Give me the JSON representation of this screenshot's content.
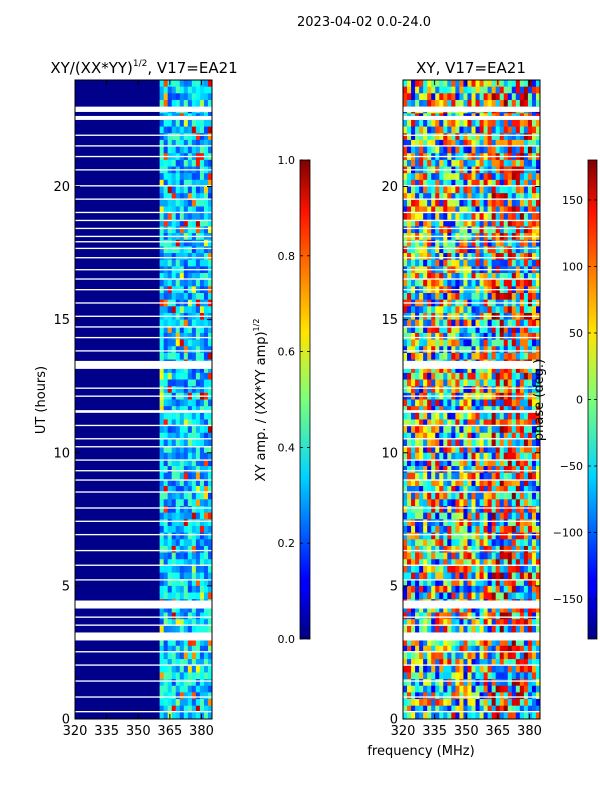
{
  "suptitle": "2023-04-02 0.0-24.0",
  "shared_xlabel": "frequency (MHz)",
  "chart_data": [
    {
      "type": "heatmap",
      "title_main": "XY/(XX*YY)",
      "title_exp": "1/2",
      "title_suffix": ", V17=EA21",
      "xlabel": "",
      "ylabel": "UT (hours)",
      "xlim": [
        320,
        385
      ],
      "ylim": [
        0,
        24
      ],
      "xticks": [
        320,
        335,
        350,
        365,
        380
      ],
      "yticks": [
        0,
        5,
        10,
        15,
        20
      ],
      "colorbar": {
        "label_main": "XY amp. / (XX*YY amp)",
        "label_exp": "1/2",
        "range": [
          0.0,
          1.0
        ],
        "ticks": [
          "0.0",
          "0.2",
          "0.4",
          "0.6",
          "0.8",
          "1.0"
        ],
        "tick_values": [
          0.0,
          0.2,
          0.4,
          0.6,
          0.8,
          1.0
        ]
      },
      "flagged_hours": [
        [
          0.25,
          0.3
        ],
        [
          0.8,
          0.85
        ],
        [
          1.4,
          1.45
        ],
        [
          2.0,
          2.05
        ],
        [
          2.5,
          2.55
        ],
        [
          2.95,
          3.25
        ],
        [
          3.5,
          3.55
        ],
        [
          3.8,
          3.85
        ],
        [
          4.15,
          4.45
        ],
        [
          5.2,
          5.25
        ],
        [
          5.75,
          5.8
        ],
        [
          6.3,
          6.35
        ],
        [
          6.9,
          6.95
        ],
        [
          7.4,
          7.45
        ],
        [
          7.9,
          7.95
        ],
        [
          8.5,
          8.55
        ],
        [
          8.95,
          9.0
        ],
        [
          9.3,
          9.35
        ],
        [
          9.7,
          9.75
        ],
        [
          10.2,
          10.25
        ],
        [
          10.5,
          10.55
        ],
        [
          11.0,
          11.05
        ],
        [
          11.5,
          11.6
        ],
        [
          12.1,
          12.15
        ],
        [
          12.4,
          12.45
        ],
        [
          13.15,
          13.45
        ],
        [
          13.8,
          13.85
        ],
        [
          14.3,
          14.35
        ],
        [
          14.7,
          14.75
        ],
        [
          15.1,
          15.15
        ],
        [
          15.6,
          15.65
        ],
        [
          16.1,
          16.15
        ],
        [
          16.5,
          16.55
        ],
        [
          16.85,
          16.9
        ],
        [
          17.3,
          17.35
        ],
        [
          17.65,
          17.7
        ],
        [
          17.9,
          17.95
        ],
        [
          18.1,
          18.15
        ],
        [
          18.4,
          18.45
        ],
        [
          18.7,
          18.75
        ],
        [
          19.0,
          19.05
        ],
        [
          19.5,
          19.55
        ],
        [
          20.0,
          20.05
        ],
        [
          20.6,
          20.65
        ],
        [
          21.1,
          21.15
        ],
        [
          21.5,
          21.55
        ],
        [
          21.9,
          21.95
        ],
        [
          22.5,
          22.65
        ],
        [
          22.8,
          23.0
        ]
      ]
    },
    {
      "type": "heatmap",
      "title": "XY, V17=EA21",
      "xlabel": "frequency (MHz)",
      "ylabel": "",
      "xlim": [
        320,
        385
      ],
      "ylim": [
        0,
        24
      ],
      "xticks": [
        320,
        335,
        350,
        365,
        380
      ],
      "yticks": [
        0,
        5,
        10,
        15,
        20
      ],
      "colorbar": {
        "label": "phase (deg.)",
        "range": [
          -180,
          180
        ],
        "ticks": [
          "−150",
          "−100",
          "−50",
          "0",
          "50",
          "100",
          "150"
        ],
        "tick_values": [
          -150,
          -100,
          -50,
          0,
          50,
          100,
          150
        ]
      },
      "flagged_hours": [
        [
          0.25,
          0.3
        ],
        [
          0.8,
          0.85
        ],
        [
          1.4,
          1.45
        ],
        [
          2.0,
          2.05
        ],
        [
          2.5,
          2.55
        ],
        [
          2.95,
          3.25
        ],
        [
          3.5,
          3.55
        ],
        [
          3.8,
          3.85
        ],
        [
          4.15,
          4.45
        ],
        [
          5.2,
          5.25
        ],
        [
          5.75,
          5.8
        ],
        [
          6.3,
          6.35
        ],
        [
          6.9,
          6.95
        ],
        [
          7.4,
          7.45
        ],
        [
          7.9,
          7.95
        ],
        [
          8.5,
          8.55
        ],
        [
          8.95,
          9.0
        ],
        [
          9.3,
          9.35
        ],
        [
          9.7,
          9.75
        ],
        [
          10.2,
          10.25
        ],
        [
          10.5,
          10.55
        ],
        [
          11.0,
          11.05
        ],
        [
          11.5,
          11.6
        ],
        [
          12.1,
          12.15
        ],
        [
          12.4,
          12.45
        ],
        [
          13.15,
          13.45
        ],
        [
          13.8,
          13.85
        ],
        [
          14.3,
          14.35
        ],
        [
          14.7,
          14.75
        ],
        [
          15.1,
          15.15
        ],
        [
          15.6,
          15.65
        ],
        [
          16.1,
          16.15
        ],
        [
          16.5,
          16.55
        ],
        [
          16.85,
          16.9
        ],
        [
          17.3,
          17.35
        ],
        [
          17.65,
          17.7
        ],
        [
          17.9,
          17.95
        ],
        [
          18.1,
          18.15
        ],
        [
          18.4,
          18.45
        ],
        [
          18.7,
          18.75
        ],
        [
          19.0,
          19.05
        ],
        [
          19.5,
          19.55
        ],
        [
          20.0,
          20.05
        ],
        [
          20.6,
          20.65
        ],
        [
          21.1,
          21.15
        ],
        [
          21.5,
          21.55
        ],
        [
          21.9,
          21.95
        ],
        [
          22.5,
          22.65
        ],
        [
          22.8,
          23.0
        ]
      ]
    }
  ]
}
